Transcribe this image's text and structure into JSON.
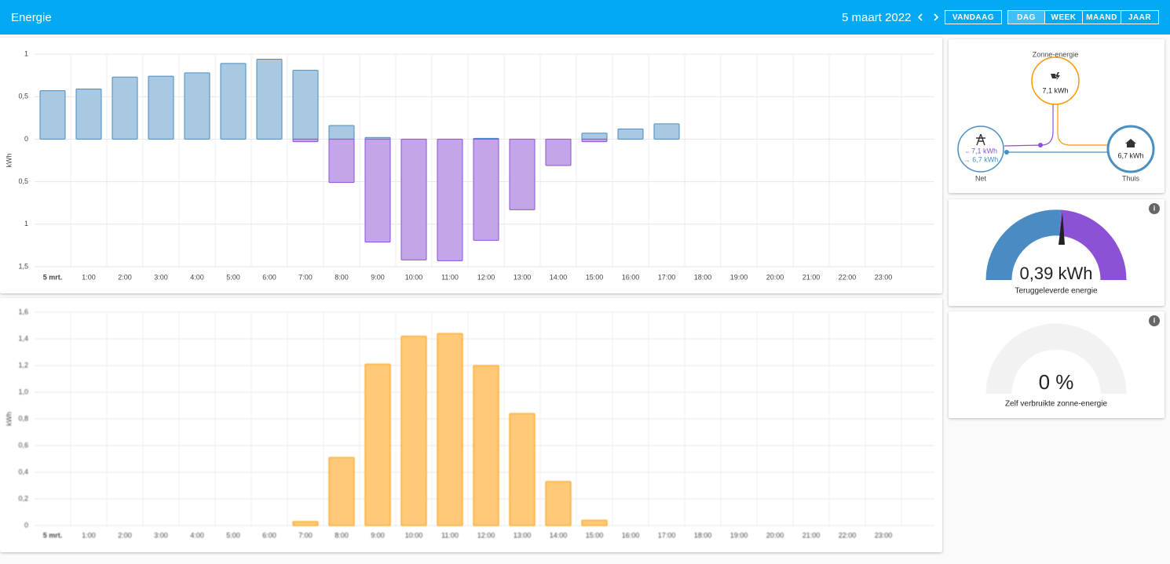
{
  "header": {
    "title": "Energie",
    "date": "5 maart 2022",
    "today": "VANDAAG",
    "periods": [
      "DAG",
      "WEEK",
      "MAAND",
      "JAAR"
    ]
  },
  "chart_data": [
    {
      "type": "bar",
      "ylabel": "kWh",
      "categories": [
        "5 mrt.",
        "1:00",
        "2:00",
        "3:00",
        "4:00",
        "5:00",
        "6:00",
        "7:00",
        "8:00",
        "9:00",
        "10:00",
        "11:00",
        "12:00",
        "13:00",
        "14:00",
        "15:00",
        "16:00",
        "17:00",
        "18:00",
        "19:00",
        "20:00",
        "21:00",
        "22:00",
        "23:00"
      ],
      "series": [
        {
          "color": "#4a8bbf",
          "values": [
            0.57,
            0.59,
            0.73,
            0.74,
            0.78,
            0.89,
            0.94,
            0.81,
            0.16,
            0.02,
            0,
            0,
            0.01,
            0,
            0,
            0.07,
            0.12,
            0.18,
            0,
            0,
            0,
            0,
            0,
            0
          ]
        },
        {
          "color": "#8c52d6",
          "values": [
            0,
            0,
            0,
            0,
            0,
            0,
            0,
            -0.03,
            -0.51,
            -1.21,
            -1.42,
            -1.43,
            -1.19,
            -0.83,
            -0.31,
            -0.03,
            0,
            0,
            0,
            0,
            0,
            0,
            0,
            0
          ]
        }
      ],
      "ylim": [
        -1.5,
        1
      ],
      "yticks": [
        1,
        {
          "value": 0.5,
          "label": "0,5"
        },
        0,
        {
          "value": -0.5,
          "label": "0,5"
        },
        {
          "value": -1,
          "label": "1"
        },
        {
          "value": -1.5,
          "label": "1,5"
        }
      ],
      "grid": true
    },
    {
      "type": "bar",
      "ylabel": "kWh",
      "categories": [
        "5 mrt.",
        "1:00",
        "2:00",
        "3:00",
        "4:00",
        "5:00",
        "6:00",
        "7:00",
        "8:00",
        "9:00",
        "10:00",
        "11:00",
        "12:00",
        "13:00",
        "14:00",
        "15:00",
        "16:00",
        "17:00",
        "18:00",
        "19:00",
        "20:00",
        "21:00",
        "22:00",
        "23:00"
      ],
      "series": [
        {
          "color": "#ff9800",
          "values": [
            0,
            0,
            0,
            0,
            0,
            0,
            0,
            0.03,
            0.51,
            1.21,
            1.42,
            1.44,
            1.2,
            0.84,
            0.33,
            0.04,
            0,
            0,
            0,
            0,
            0,
            0,
            0,
            0
          ]
        }
      ],
      "ylim": [
        0,
        1.6
      ],
      "yticks": [
        0,
        {
          "value": 0.2,
          "label": "0,2"
        },
        {
          "value": 0.4,
          "label": "0,4"
        },
        {
          "value": 0.6,
          "label": "0,6"
        },
        {
          "value": 0.8,
          "label": "0,8"
        },
        {
          "value": 1,
          "label": "1,0"
        },
        {
          "value": 1.2,
          "label": "1,2"
        },
        {
          "value": 1.4,
          "label": "1,4"
        },
        {
          "value": 1.6,
          "label": "1,6"
        }
      ],
      "grid": true
    }
  ],
  "distribution": {
    "solar_label": "Zonne-energie",
    "solar_value": "7,1 kWh",
    "grid_in": "←7,1 kWh",
    "grid_out": "→ 6,7 kWh",
    "grid_label": "Net",
    "home_value": "6,7 kWh",
    "home_label": "Thuis"
  },
  "gauges": [
    {
      "value": "0,39 kWh",
      "label": "Teruggeleverde energie"
    },
    {
      "value": "0 %",
      "label": "Zelf verbruikte zonne-energie"
    }
  ]
}
